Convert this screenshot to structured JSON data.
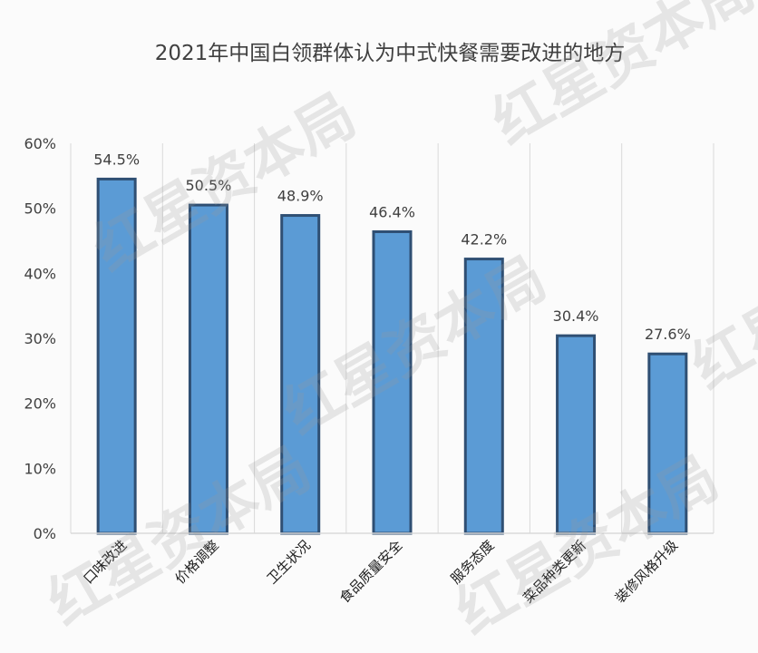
{
  "chart_data": {
    "type": "bar",
    "title": "2021年中国白领群体认为中式快餐需要改进的地方",
    "xlabel": "",
    "ylabel": "",
    "categories": [
      "口味改进",
      "价格调整",
      "卫生状况",
      "食品质量安全",
      "服务态度",
      "菜品种类更新",
      "装修风格升级"
    ],
    "values": [
      54.5,
      50.5,
      48.9,
      46.4,
      42.2,
      30.4,
      27.6
    ],
    "data_labels": [
      "54.5%",
      "50.5%",
      "48.9%",
      "46.4%",
      "42.2%",
      "30.4%",
      "27.6%"
    ],
    "ylim": [
      0,
      60
    ],
    "yticks": [
      0,
      10,
      20,
      30,
      40,
      50,
      60
    ],
    "ytick_labels": [
      "0%",
      "10%",
      "20%",
      "30%",
      "40%",
      "50%",
      "60%"
    ],
    "grid": "vertical",
    "legend": "none",
    "colors": {
      "bar_fill": "#5b9bd5",
      "bar_stroke": "#2f4f73",
      "grid": "#d9d9d9",
      "text": "#404040"
    }
  },
  "watermark": {
    "text": "红星资本局"
  }
}
